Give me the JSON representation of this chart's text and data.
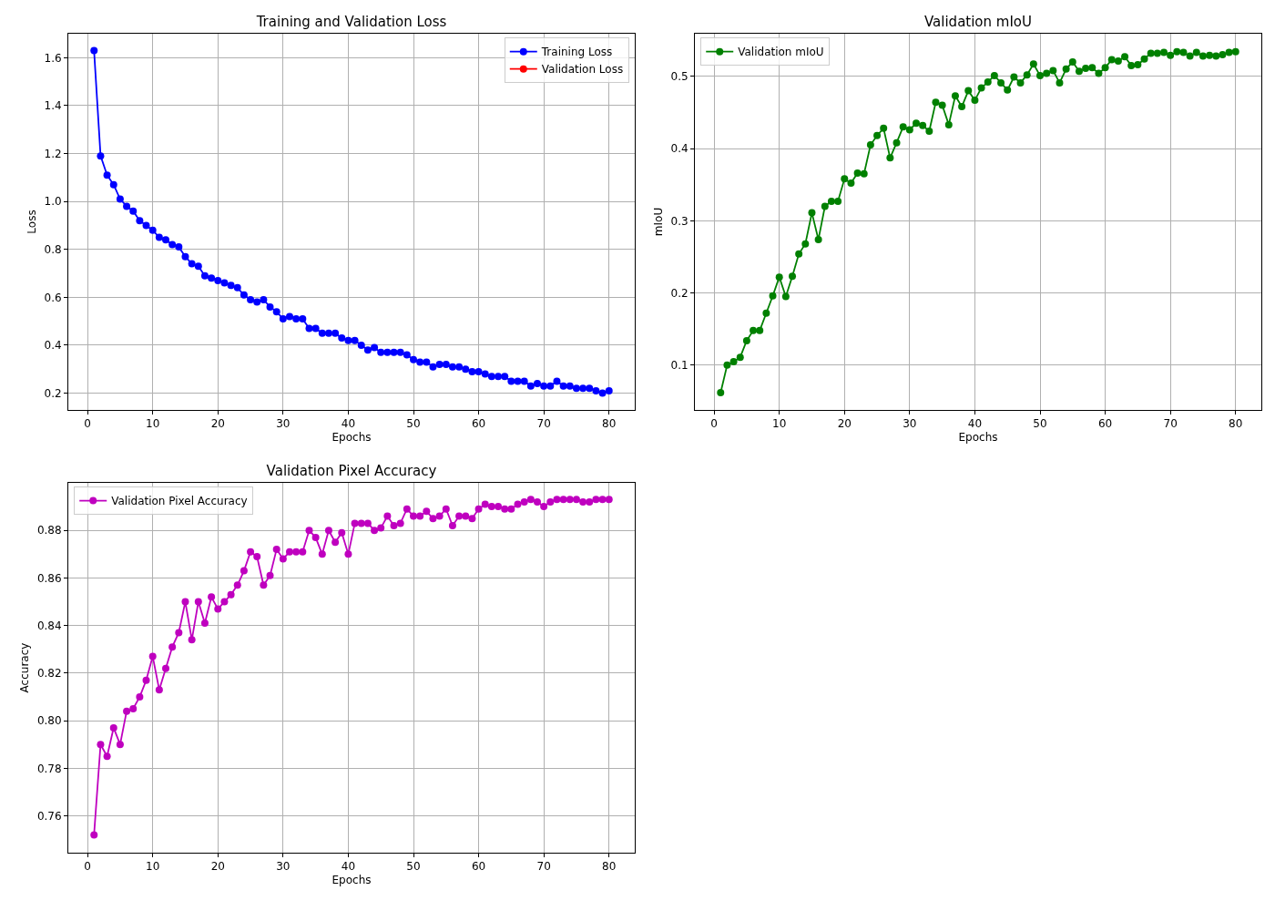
{
  "chart_data": [
    {
      "type": "line",
      "title": "Training and Validation Loss",
      "xlabel": "Epochs",
      "ylabel": "Loss",
      "grid": true,
      "legend": "top right",
      "marker": "circle",
      "line_style": "solid",
      "xlim": [
        -2.95,
        83.95
      ],
      "xticks": [
        0,
        10,
        20,
        30,
        40,
        50,
        60,
        70,
        80
      ],
      "ylim": [
        0.13,
        1.7
      ],
      "yticks": [
        {
          "value": 0.2,
          "label": "0.2"
        },
        {
          "value": 0.4,
          "label": "0.4"
        },
        {
          "value": 0.6,
          "label": "0.6"
        },
        {
          "value": 0.8,
          "label": "0.8"
        },
        {
          "value": 1.0,
          "label": "1.0"
        },
        {
          "value": 1.2,
          "label": "1.2"
        },
        {
          "value": 1.4,
          "label": "1.4"
        },
        {
          "value": 1.6,
          "label": "1.6"
        }
      ],
      "series": [
        {
          "name": "Training Loss",
          "color": "#0000ff",
          "x": [
            1,
            2,
            3,
            4,
            5,
            6,
            7,
            8,
            9,
            10,
            11,
            12,
            13,
            14,
            15,
            16,
            17,
            18,
            19,
            20,
            21,
            22,
            23,
            24,
            25,
            26,
            27,
            28,
            29,
            30,
            31,
            32,
            33,
            34,
            35,
            36,
            37,
            38,
            39,
            40,
            41,
            42,
            43,
            44,
            45,
            46,
            47,
            48,
            49,
            50,
            51,
            52,
            53,
            54,
            55,
            56,
            57,
            58,
            59,
            60,
            61,
            62,
            63,
            64,
            65,
            66,
            67,
            68,
            69,
            70,
            71,
            72,
            73,
            74,
            75,
            76,
            77,
            78,
            79,
            80
          ],
          "values": [
            1.63,
            1.19,
            1.11,
            1.07,
            1.01,
            0.98,
            0.96,
            0.92,
            0.9,
            0.88,
            0.85,
            0.84,
            0.82,
            0.81,
            0.77,
            0.74,
            0.73,
            0.69,
            0.68,
            0.67,
            0.66,
            0.65,
            0.64,
            0.61,
            0.59,
            0.58,
            0.59,
            0.56,
            0.54,
            0.51,
            0.52,
            0.51,
            0.51,
            0.47,
            0.47,
            0.45,
            0.45,
            0.45,
            0.43,
            0.42,
            0.42,
            0.4,
            0.38,
            0.39,
            0.37,
            0.37,
            0.37,
            0.37,
            0.36,
            0.34,
            0.33,
            0.33,
            0.31,
            0.32,
            0.32,
            0.31,
            0.31,
            0.3,
            0.29,
            0.29,
            0.28,
            0.27,
            0.27,
            0.27,
            0.25,
            0.25,
            0.25,
            0.23,
            0.24,
            0.23,
            0.23,
            0.25,
            0.23,
            0.23,
            0.22,
            0.22,
            0.22,
            0.21,
            0.2,
            0.21
          ]
        },
        {
          "name": "Validation Loss",
          "color": "#ff0000"
        }
      ]
    },
    {
      "type": "line",
      "title": "Validation mIoU",
      "xlabel": "Epochs",
      "ylabel": "mIoU",
      "grid": true,
      "legend": "top left",
      "marker": "circle",
      "line_style": "solid",
      "xlim": [
        -2.95,
        83.95
      ],
      "xticks": [
        0,
        10,
        20,
        30,
        40,
        50,
        60,
        70,
        80
      ],
      "ylim": [
        0.038,
        0.559
      ],
      "yticks": [
        0.1,
        0.2,
        0.3,
        0.4,
        0.5
      ],
      "series": [
        {
          "name": "Validation mIoU",
          "color": "#008000",
          "x": [
            1,
            2,
            3,
            4,
            5,
            6,
            7,
            8,
            9,
            10,
            11,
            12,
            13,
            14,
            15,
            16,
            17,
            18,
            19,
            20,
            21,
            22,
            23,
            24,
            25,
            26,
            27,
            28,
            29,
            30,
            31,
            32,
            33,
            34,
            35,
            36,
            37,
            38,
            39,
            40,
            41,
            42,
            43,
            44,
            45,
            46,
            47,
            48,
            49,
            50,
            51,
            52,
            53,
            54,
            55,
            56,
            57,
            58,
            59,
            60,
            61,
            62,
            63,
            64,
            65,
            66,
            67,
            68,
            69,
            70,
            71,
            72,
            73,
            74,
            75,
            76,
            77,
            78,
            79,
            80
          ],
          "values": [
            0.062,
            0.1,
            0.105,
            0.111,
            0.134,
            0.148,
            0.148,
            0.172,
            0.196,
            0.222,
            0.195,
            0.223,
            0.254,
            0.268,
            0.311,
            0.274,
            0.32,
            0.327,
            0.327,
            0.358,
            0.352,
            0.366,
            0.365,
            0.405,
            0.418,
            0.428,
            0.387,
            0.408,
            0.43,
            0.426,
            0.435,
            0.432,
            0.424,
            0.464,
            0.46,
            0.433,
            0.473,
            0.458,
            0.48,
            0.467,
            0.484,
            0.492,
            0.501,
            0.491,
            0.481,
            0.499,
            0.491,
            0.502,
            0.517,
            0.501,
            0.504,
            0.508,
            0.491,
            0.51,
            0.52,
            0.507,
            0.511,
            0.512,
            0.504,
            0.512,
            0.523,
            0.521,
            0.527,
            0.515,
            0.516,
            0.524,
            0.532,
            0.532,
            0.533,
            0.529,
            0.534,
            0.533,
            0.528,
            0.533,
            0.528,
            0.529,
            0.528,
            0.53,
            0.533,
            0.534
          ]
        }
      ]
    },
    {
      "type": "line",
      "title": "Validation Pixel Accuracy",
      "xlabel": "Epochs",
      "ylabel": "Accuracy",
      "grid": true,
      "legend": "top left",
      "marker": "circle",
      "line_style": "solid",
      "xlim": [
        -2.95,
        83.95
      ],
      "xticks": [
        0,
        10,
        20,
        30,
        40,
        50,
        60,
        70,
        80
      ],
      "ylim": [
        0.7445,
        0.9
      ],
      "yticks": [
        0.76,
        0.78,
        {
          "value": 0.8,
          "label": "0.80"
        },
        0.82,
        0.84,
        0.86,
        0.88
      ],
      "series": [
        {
          "name": "Validation Pixel Accuracy",
          "color": "#bf00bf",
          "x": [
            1,
            2,
            3,
            4,
            5,
            6,
            7,
            8,
            9,
            10,
            11,
            12,
            13,
            14,
            15,
            16,
            17,
            18,
            19,
            20,
            21,
            22,
            23,
            24,
            25,
            26,
            27,
            28,
            29,
            30,
            31,
            32,
            33,
            34,
            35,
            36,
            37,
            38,
            39,
            40,
            41,
            42,
            43,
            44,
            45,
            46,
            47,
            48,
            49,
            50,
            51,
            52,
            53,
            54,
            55,
            56,
            57,
            58,
            59,
            60,
            61,
            62,
            63,
            64,
            65,
            66,
            67,
            68,
            69,
            70,
            71,
            72,
            73,
            74,
            75,
            76,
            77,
            78,
            79,
            80
          ],
          "values": [
            0.752,
            0.79,
            0.785,
            0.797,
            0.79,
            0.804,
            0.805,
            0.81,
            0.817,
            0.827,
            0.813,
            0.822,
            0.831,
            0.837,
            0.85,
            0.834,
            0.85,
            0.841,
            0.852,
            0.847,
            0.85,
            0.853,
            0.857,
            0.863,
            0.871,
            0.869,
            0.857,
            0.861,
            0.872,
            0.868,
            0.871,
            0.871,
            0.871,
            0.88,
            0.877,
            0.87,
            0.88,
            0.875,
            0.879,
            0.87,
            0.883,
            0.883,
            0.883,
            0.88,
            0.881,
            0.886,
            0.882,
            0.883,
            0.889,
            0.886,
            0.886,
            0.888,
            0.885,
            0.886,
            0.889,
            0.882,
            0.886,
            0.886,
            0.885,
            0.889,
            0.891,
            0.89,
            0.89,
            0.889,
            0.889,
            0.891,
            0.892,
            0.893,
            0.892,
            0.89,
            0.892,
            0.893,
            0.893,
            0.893,
            0.893,
            0.892,
            0.892,
            0.893,
            0.893,
            0.893
          ]
        }
      ]
    }
  ]
}
